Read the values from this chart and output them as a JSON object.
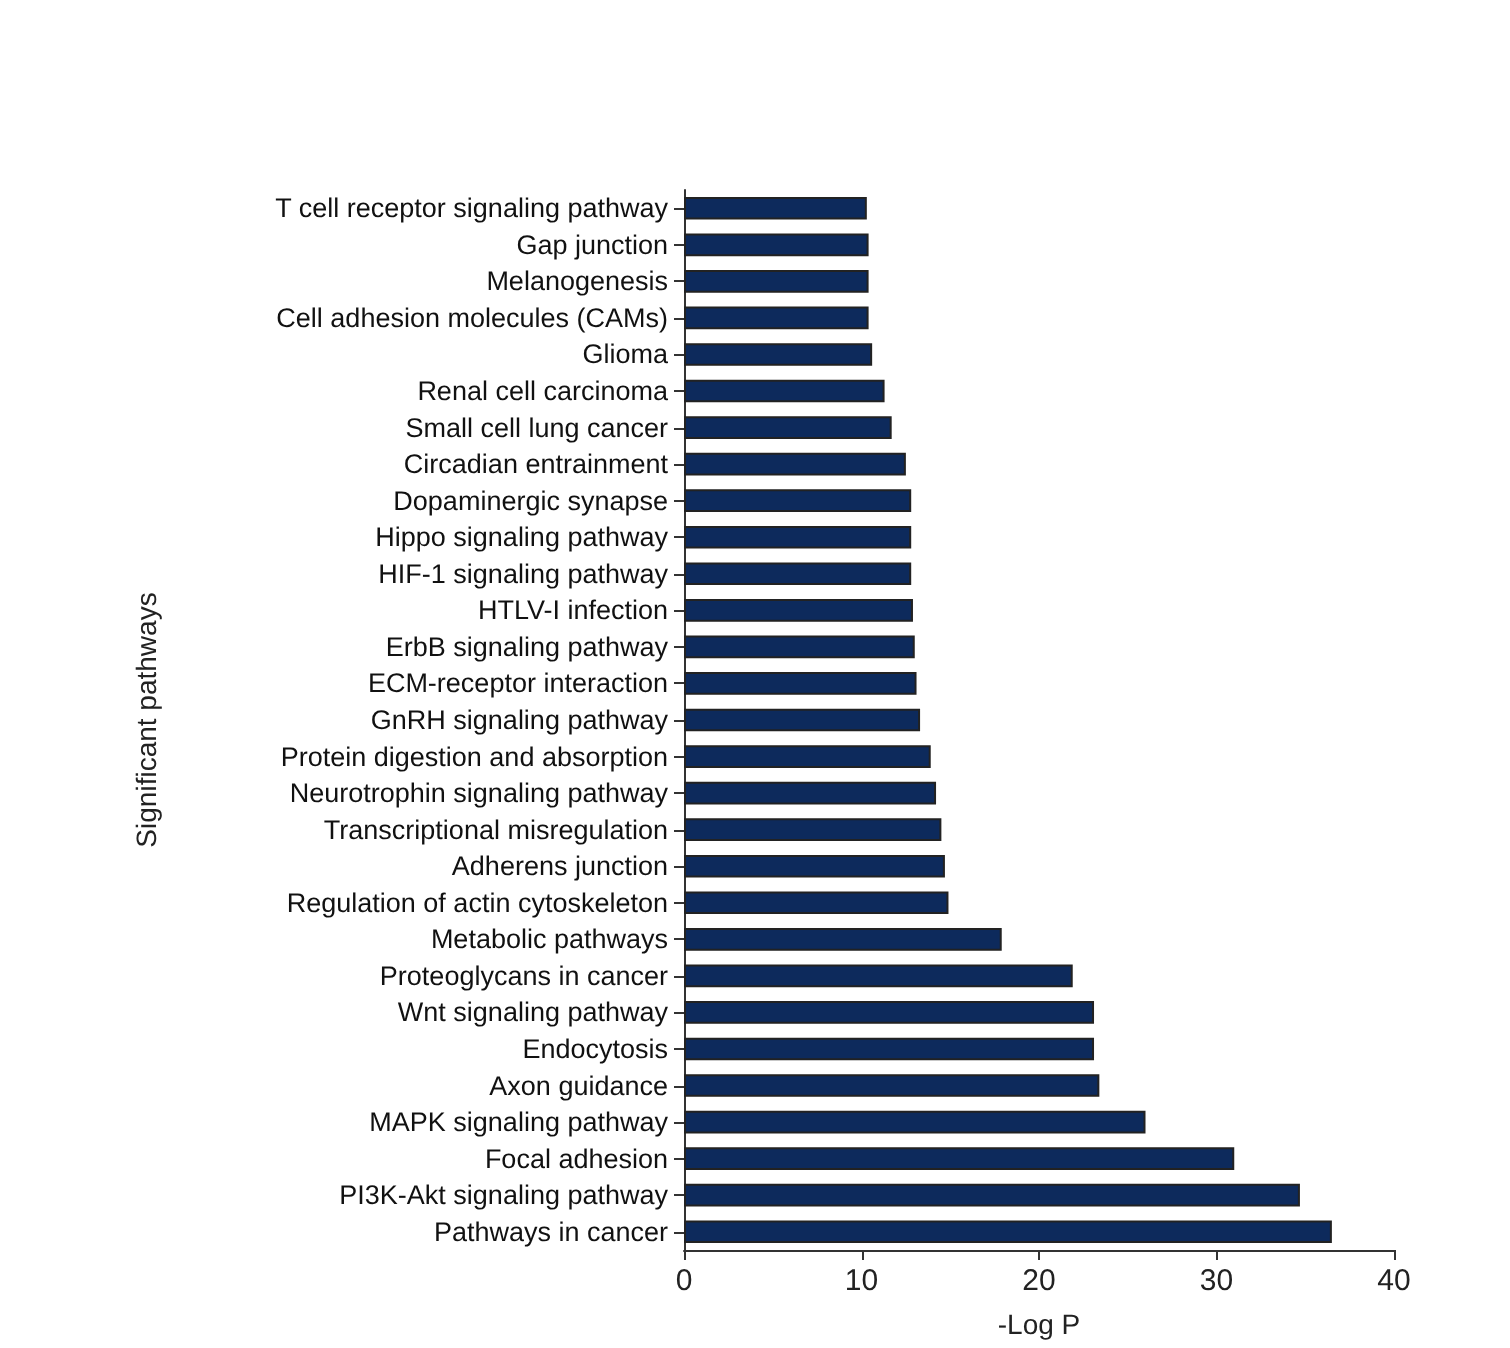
{
  "chart_data": {
    "type": "bar",
    "orientation": "horizontal",
    "xlabel": "-Log P",
    "ylabel": "Significant pathways",
    "categories": [
      "T cell receptor signaling pathway",
      "Gap junction",
      "Melanogenesis",
      "Cell adhesion molecules (CAMs)",
      "Glioma",
      "Renal cell carcinoma",
      "Small cell lung cancer",
      "Circadian entrainment",
      "Dopaminergic synapse",
      "Hippo signaling pathway",
      "HIF-1 signaling pathway",
      "HTLV-I infection",
      "ErbB signaling pathway",
      "ECM-receptor interaction",
      "GnRH signaling pathway",
      "Protein digestion and absorption",
      "Neurotrophin signaling pathway",
      "Transcriptional misregulation",
      "Adherens junction",
      "Regulation of actin cytoskeleton",
      "Metabolic pathways",
      "Proteoglycans in cancer",
      "Wnt signaling pathway",
      "Endocytosis",
      "Axon guidance",
      "MAPK signaling pathway",
      "Focal adhesion",
      "PI3K-Akt signaling pathway",
      "Pathways in cancer"
    ],
    "values": [
      10.3,
      10.4,
      10.4,
      10.4,
      10.6,
      11.3,
      11.7,
      12.5,
      12.8,
      12.8,
      12.8,
      12.9,
      13.0,
      13.1,
      13.3,
      13.9,
      14.2,
      14.5,
      14.7,
      14.9,
      17.9,
      21.9,
      23.1,
      23.1,
      23.4,
      26.0,
      31.0,
      34.7,
      36.5
    ],
    "color": "#0d2a5c",
    "xlim": [
      0,
      40
    ],
    "xticks": [
      0,
      10,
      20,
      30,
      40
    ],
    "grid": false
  }
}
